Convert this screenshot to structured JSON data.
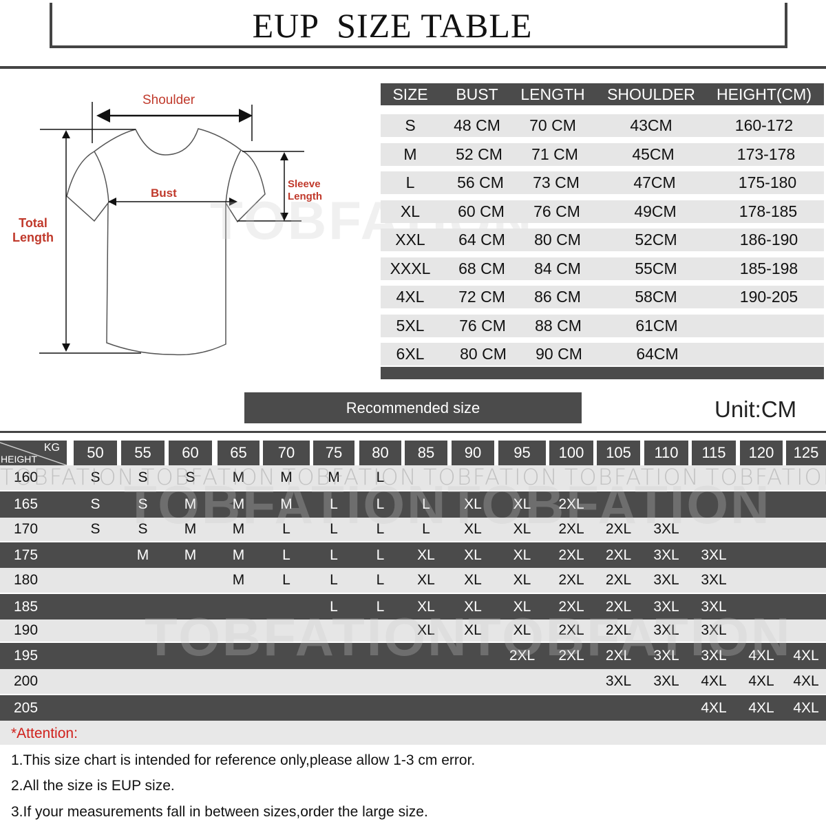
{
  "title": "EUP  SIZE TABLE",
  "watermark": "TOBFATION",
  "diagram": {
    "shoulder": "Shoulder",
    "bust": "Bust",
    "sleeve_length_1": "Sleeve",
    "sleeve_length_2": "Length",
    "total_length_1": "Total",
    "total_length_2": "Length"
  },
  "size_table": {
    "headers": [
      "SIZE",
      "BUST",
      "LENGTH",
      "SHOULDER",
      "HEIGHT(CM)"
    ],
    "rows": [
      [
        "S",
        "48 CM",
        "70 CM",
        "43CM",
        "160-172"
      ],
      [
        "M",
        "52 CM",
        "71 CM",
        "45CM",
        "173-178"
      ],
      [
        "L",
        "56 CM",
        "73 CM",
        "47CM",
        "175-180"
      ],
      [
        "XL",
        "60 CM",
        "76 CM",
        "49CM",
        "178-185"
      ],
      [
        "XXL",
        "64 CM",
        "80 CM",
        "52CM",
        "186-190"
      ],
      [
        "XXXL",
        "68 CM",
        "84 CM",
        "55CM",
        "185-198"
      ],
      [
        "4XL",
        "72 CM",
        "86 CM",
        "58CM",
        "190-205"
      ],
      [
        "5XL",
        "76 CM",
        "88 CM",
        "61CM",
        ""
      ],
      [
        "6XL",
        "80 CM",
        "90 CM",
        "64CM",
        ""
      ]
    ]
  },
  "recommended_label": "Recommended size",
  "unit": "Unit:CM",
  "recommend_table": {
    "corner_kg": "KG",
    "corner_height": "HEIGHT",
    "weights": [
      "50",
      "55",
      "60",
      "65",
      "70",
      "75",
      "80",
      "85",
      "90",
      "95",
      "100",
      "105",
      "110",
      "115",
      "120",
      "125"
    ],
    "rows": [
      {
        "height": "160",
        "sizes": [
          "S",
          "S",
          "S",
          "M",
          "M",
          "M",
          "L",
          "",
          "",
          "",
          "",
          "",
          "",
          "",
          "",
          ""
        ]
      },
      {
        "height": "165",
        "sizes": [
          "S",
          "S",
          "M",
          "M",
          "M",
          "L",
          "L",
          "L",
          "XL",
          "XL",
          "2XL",
          "",
          "",
          "",
          "",
          ""
        ]
      },
      {
        "height": "170",
        "sizes": [
          "S",
          "S",
          "M",
          "M",
          "L",
          "L",
          "L",
          "L",
          "XL",
          "XL",
          "2XL",
          "2XL",
          "3XL",
          "",
          "",
          ""
        ]
      },
      {
        "height": "175",
        "sizes": [
          "",
          "M",
          "M",
          "M",
          "L",
          "L",
          "L",
          "XL",
          "XL",
          "XL",
          "2XL",
          "2XL",
          "3XL",
          "3XL",
          "",
          ""
        ]
      },
      {
        "height": "180",
        "sizes": [
          "",
          "",
          "",
          "M",
          "L",
          "L",
          "L",
          "XL",
          "XL",
          "XL",
          "2XL",
          "2XL",
          "3XL",
          "3XL",
          "",
          ""
        ]
      },
      {
        "height": "185",
        "sizes": [
          "",
          "",
          "",
          "",
          "",
          "L",
          "L",
          "XL",
          "XL",
          "XL",
          "2XL",
          "2XL",
          "3XL",
          "3XL",
          "",
          ""
        ]
      },
      {
        "height": "190",
        "sizes": [
          "",
          "",
          "",
          "",
          "",
          "",
          "",
          "XL",
          "XL",
          "XL",
          "2XL",
          "2XL",
          "3XL",
          "3XL",
          "",
          ""
        ]
      },
      {
        "height": "195",
        "sizes": [
          "",
          "",
          "",
          "",
          "",
          "",
          "",
          "",
          "",
          "2XL",
          "2XL",
          "2XL",
          "3XL",
          "3XL",
          "4XL",
          "4XL"
        ]
      },
      {
        "height": "200",
        "sizes": [
          "",
          "",
          "",
          "",
          "",
          "",
          "",
          "",
          "",
          "",
          "",
          "3XL",
          "3XL",
          "4XL",
          "4XL",
          "4XL"
        ]
      },
      {
        "height": "205",
        "sizes": [
          "",
          "",
          "",
          "",
          "",
          "",
          "",
          "",
          "",
          "",
          "",
          "",
          "",
          "4XL",
          "4XL",
          "4XL"
        ]
      }
    ]
  },
  "attention": "*Attention:",
  "notes": [
    "1.This size chart is intended for reference only,please allow 1-3 cm error.",
    "2.All the size is EUP size.",
    "3.If your measurements fall in between sizes,order the large size."
  ],
  "colors": {
    "dark_band": "#4b4b4b",
    "light_band": "#e6e6e6",
    "label_red": "#c0392b",
    "attention_red": "#d0211c"
  }
}
